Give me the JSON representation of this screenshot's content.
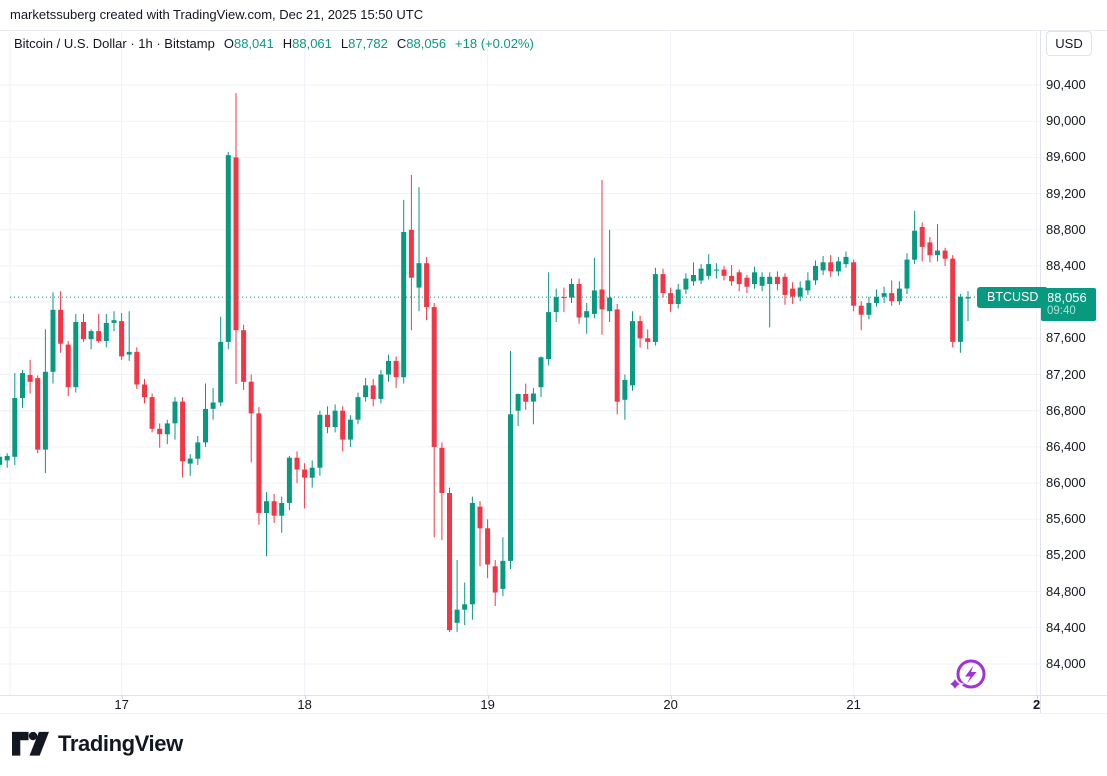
{
  "attribution": "marketssuberg created with TradingView.com, Dec 21, 2025 15:50 UTC",
  "header": {
    "symbol_title": "Bitcoin / U.S. Dollar · 1h · Bitstamp",
    "ohlc": [
      {
        "label": "O",
        "value": "88,041"
      },
      {
        "label": "H",
        "value": "88,061"
      },
      {
        "label": "L",
        "value": "87,782"
      },
      {
        "label": "C",
        "value": "88,056"
      }
    ],
    "change": "+18 (+0.02%)"
  },
  "price_axis": {
    "currency_button": "USD",
    "ticks": [
      {
        "value": 90400,
        "label": "90,400"
      },
      {
        "value": 90000,
        "label": "90,000"
      },
      {
        "value": 89600,
        "label": "89,600"
      },
      {
        "value": 89200,
        "label": "89,200"
      },
      {
        "value": 88800,
        "label": "88,800"
      },
      {
        "value": 88400,
        "label": "88,400"
      },
      {
        "value": 87600,
        "label": "87,600"
      },
      {
        "value": 87200,
        "label": "87,200"
      },
      {
        "value": 86800,
        "label": "86,800"
      },
      {
        "value": 86400,
        "label": "86,400"
      },
      {
        "value": 86000,
        "label": "86,000"
      },
      {
        "value": 85600,
        "label": "85,600"
      },
      {
        "value": 85200,
        "label": "85,200"
      },
      {
        "value": 84800,
        "label": "84,800"
      },
      {
        "value": 84400,
        "label": "84,400"
      },
      {
        "value": 84000,
        "label": "84,000"
      }
    ],
    "price_box": {
      "price": "88,056",
      "countdown": "09:40"
    }
  },
  "time_axis": {
    "labels": [
      {
        "text": "17",
        "bold": false
      },
      {
        "text": "18",
        "bold": false
      },
      {
        "text": "19",
        "bold": false
      },
      {
        "text": "20",
        "bold": false
      },
      {
        "text": "21",
        "bold": false
      },
      {
        "text": "2",
        "bold": true
      }
    ]
  },
  "series_label": {
    "text": "BTCUSD"
  },
  "footer": {
    "brand": "TradingView"
  },
  "colors": {
    "up": "#089981",
    "down": "#F23645",
    "text": "#131722",
    "grid": "#F0F2F7",
    "border": "#E0E3EB",
    "accent_purple": "#A032DC"
  },
  "chart_data": {
    "type": "candlestick",
    "symbol": "BTCUSD",
    "title": "Bitcoin / U.S. Dollar",
    "interval": "1h",
    "exchange": "Bitstamp",
    "last_bar": {
      "open": 88041,
      "high": 88061,
      "low": 87782,
      "close": 88056,
      "change_abs": 18,
      "change_pct": 0.02
    },
    "current_price": 88056,
    "countdown": "09:40",
    "ylim": [
      84000,
      90400
    ],
    "y_ticks_step": 400,
    "x_labels": [
      "17",
      "18",
      "19",
      "20",
      "21",
      "2"
    ],
    "bars_note": "Approx. hourly OHLC read from chart, Dec 16 ~09:00 UTC to Dec 21 15:00 UTC",
    "columns": [
      "open",
      "high",
      "low",
      "close"
    ],
    "bars": [
      [
        86200,
        86330,
        86120,
        86290
      ],
      [
        86250,
        86330,
        86170,
        86300
      ],
      [
        86290,
        87215,
        86200,
        86940
      ],
      [
        86940,
        87250,
        86830,
        87215
      ],
      [
        87195,
        87360,
        86990,
        87120
      ],
      [
        87160,
        87190,
        86330,
        86370
      ],
      [
        86370,
        87700,
        86110,
        87230
      ],
      [
        87230,
        88110,
        87100,
        87915
      ],
      [
        87915,
        88120,
        87440,
        87540
      ],
      [
        87530,
        87570,
        86960,
        87060
      ],
      [
        87060,
        87870,
        87000,
        87780
      ],
      [
        87780,
        87870,
        87560,
        87590
      ],
      [
        87590,
        87700,
        87480,
        87680
      ],
      [
        87680,
        87870,
        87550,
        87570
      ],
      [
        87570,
        87870,
        87500,
        87770
      ],
      [
        87770,
        87900,
        87680,
        87800
      ],
      [
        87790,
        87880,
        87360,
        87400
      ],
      [
        87420,
        87900,
        87350,
        87450
      ],
      [
        87450,
        87500,
        87040,
        87090
      ],
      [
        87090,
        87150,
        86880,
        86950
      ],
      [
        86950,
        86990,
        86560,
        86600
      ],
      [
        86600,
        86660,
        86390,
        86540
      ],
      [
        86540,
        86700,
        86430,
        86660
      ],
      [
        86660,
        86950,
        86480,
        86900
      ],
      [
        86900,
        86950,
        86060,
        86240
      ],
      [
        86215,
        86320,
        86080,
        86270
      ],
      [
        86270,
        86520,
        86200,
        86450
      ],
      [
        86450,
        87100,
        86400,
        86820
      ],
      [
        86820,
        87050,
        86700,
        86890
      ],
      [
        86890,
        87840,
        86850,
        87560
      ],
      [
        87560,
        89660,
        87480,
        89625
      ],
      [
        89600,
        90310,
        87095,
        87690
      ],
      [
        87690,
        87750,
        87030,
        87120
      ],
      [
        87120,
        87200,
        86230,
        86770
      ],
      [
        86770,
        86840,
        85540,
        85670
      ],
      [
        85670,
        85900,
        85190,
        85800
      ],
      [
        85800,
        85880,
        85560,
        85640
      ],
      [
        85640,
        85850,
        85450,
        85780
      ],
      [
        85780,
        86300,
        85700,
        86280
      ],
      [
        86280,
        86350,
        86000,
        86150
      ],
      [
        86150,
        86220,
        85720,
        86060
      ],
      [
        86060,
        86250,
        85950,
        86170
      ],
      [
        86170,
        86800,
        86080,
        86755
      ],
      [
        86755,
        86850,
        86550,
        86620
      ],
      [
        86620,
        86870,
        86560,
        86800
      ],
      [
        86800,
        86850,
        86350,
        86480
      ],
      [
        86480,
        86750,
        86400,
        86700
      ],
      [
        86700,
        87000,
        86650,
        86950
      ],
      [
        86950,
        87160,
        86900,
        87080
      ],
      [
        87080,
        87150,
        86850,
        86930
      ],
      [
        86930,
        87250,
        86880,
        87200
      ],
      [
        87200,
        87420,
        87120,
        87350
      ],
      [
        87350,
        87400,
        87050,
        87170
      ],
      [
        87170,
        89130,
        87100,
        88775
      ],
      [
        88800,
        89405,
        87690,
        88270
      ],
      [
        88160,
        89270,
        87900,
        88430
      ],
      [
        88430,
        88500,
        87800,
        87945
      ],
      [
        87945,
        87990,
        85400,
        86400
      ],
      [
        86390,
        86450,
        85370,
        85890
      ],
      [
        85890,
        85950,
        84355,
        84375
      ],
      [
        84455,
        85150,
        84355,
        84600
      ],
      [
        84600,
        84900,
        84430,
        84660
      ],
      [
        84660,
        85850,
        84490,
        85780
      ],
      [
        85740,
        85800,
        85080,
        85500
      ],
      [
        85500,
        85600,
        84950,
        85100
      ],
      [
        85080,
        85150,
        84640,
        84790
      ],
      [
        84830,
        85400,
        84750,
        85140
      ],
      [
        85140,
        87460,
        85050,
        86760
      ],
      [
        86800,
        86990,
        86630,
        86985
      ],
      [
        86985,
        87100,
        86810,
        86900
      ],
      [
        86900,
        87050,
        86650,
        86990
      ],
      [
        87060,
        87400,
        86950,
        87390
      ],
      [
        87370,
        88330,
        87300,
        87890
      ],
      [
        87890,
        88150,
        87780,
        88055
      ],
      [
        88055,
        88160,
        87890,
        88050
      ],
      [
        88050,
        88260,
        87990,
        88200
      ],
      [
        88200,
        88260,
        87760,
        87830
      ],
      [
        87830,
        87990,
        87650,
        87900
      ],
      [
        87870,
        88490,
        87820,
        88130
      ],
      [
        88140,
        89350,
        87640,
        87920
      ],
      [
        87900,
        88800,
        87780,
        88050
      ],
      [
        87920,
        87980,
        86760,
        86900
      ],
      [
        86920,
        87200,
        86700,
        87140
      ],
      [
        87080,
        87900,
        87020,
        87790
      ],
      [
        87790,
        87850,
        87500,
        87600
      ],
      [
        87600,
        87700,
        87480,
        87560
      ],
      [
        87560,
        88380,
        87520,
        88310
      ],
      [
        88310,
        88370,
        88050,
        88100
      ],
      [
        88100,
        88160,
        87890,
        87980
      ],
      [
        87980,
        88200,
        87930,
        88140
      ],
      [
        88140,
        88320,
        88090,
        88260
      ],
      [
        88230,
        88440,
        88180,
        88300
      ],
      [
        88240,
        88420,
        88200,
        88370
      ],
      [
        88290,
        88530,
        88250,
        88420
      ],
      [
        88350,
        88430,
        88260,
        88360
      ],
      [
        88360,
        88400,
        88240,
        88290
      ],
      [
        88290,
        88410,
        88180,
        88230
      ],
      [
        88330,
        88360,
        88120,
        88200
      ],
      [
        88270,
        88300,
        88100,
        88170
      ],
      [
        88200,
        88390,
        88150,
        88330
      ],
      [
        88180,
        88330,
        88120,
        88280
      ],
      [
        88200,
        88330,
        87720,
        88280
      ],
      [
        88280,
        88340,
        88130,
        88200
      ],
      [
        88280,
        88320,
        87970,
        88080
      ],
      [
        88150,
        88220,
        87980,
        88060
      ],
      [
        88060,
        88230,
        88010,
        88160
      ],
      [
        88130,
        88330,
        88080,
        88240
      ],
      [
        88240,
        88460,
        88190,
        88400
      ],
      [
        88350,
        88510,
        88300,
        88440
      ],
      [
        88440,
        88520,
        88280,
        88340
      ],
      [
        88340,
        88500,
        88290,
        88450
      ],
      [
        88420,
        88560,
        88380,
        88500
      ],
      [
        88440,
        88470,
        87900,
        87960
      ],
      [
        87960,
        88010,
        87690,
        87860
      ],
      [
        87860,
        88060,
        87810,
        87990
      ],
      [
        87990,
        88140,
        87950,
        88060
      ],
      [
        88060,
        88170,
        87990,
        88100
      ],
      [
        88100,
        88240,
        87960,
        88010
      ],
      [
        88010,
        88230,
        87970,
        88150
      ],
      [
        88150,
        88540,
        88090,
        88470
      ],
      [
        88470,
        89010,
        88420,
        88790
      ],
      [
        88830,
        88880,
        88450,
        88610
      ],
      [
        88660,
        88720,
        88440,
        88520
      ],
      [
        88520,
        88860,
        88450,
        88570
      ],
      [
        88570,
        88600,
        88400,
        88480
      ],
      [
        88480,
        88520,
        87500,
        87560
      ],
      [
        87560,
        88090,
        87440,
        88060
      ],
      [
        88040,
        88120,
        87790,
        88056
      ]
    ]
  }
}
